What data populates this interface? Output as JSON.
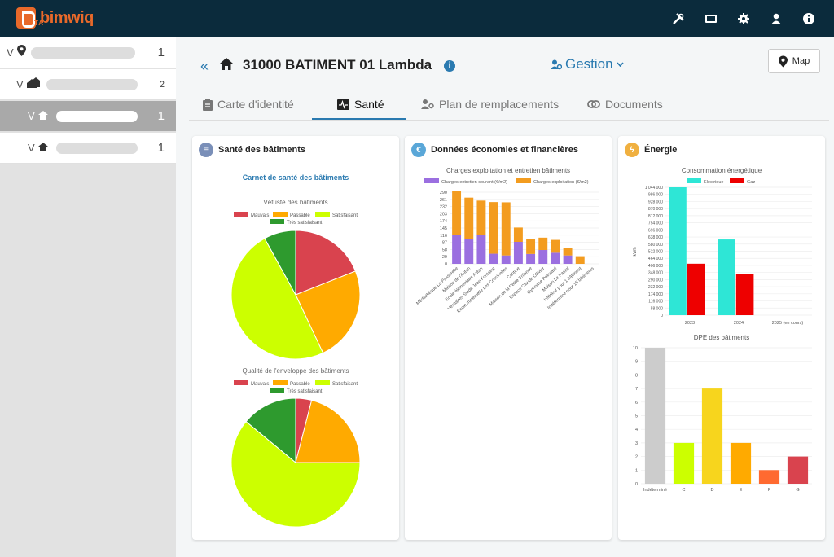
{
  "app": {
    "brand": "bimwiq",
    "brand_sub": "DATA"
  },
  "topbar_icons": [
    "tools-icon",
    "card-icon",
    "gear-icon",
    "user-icon",
    "info-icon"
  ],
  "sidebar": {
    "items": [
      {
        "icon": "pin-icon",
        "count": "1",
        "level": 0
      },
      {
        "icon": "buildings-icon",
        "count": "2",
        "level": 1
      },
      {
        "icon": "home-icon",
        "count": "1",
        "level": 2,
        "selected": true
      },
      {
        "icon": "home-icon",
        "count": "1",
        "level": 2
      }
    ]
  },
  "header": {
    "back": "«",
    "title": "31000 BATIMENT 01 Lambda",
    "info": "i",
    "menu_label": "Gestion",
    "map_label": "Map"
  },
  "tabs": [
    {
      "label": "Carte d'identité",
      "icon": "clipboard-icon"
    },
    {
      "label": "Santé",
      "icon": "heartbeat-icon",
      "active": true
    },
    {
      "label": "Plan de remplacements",
      "icon": "users-gear-icon"
    },
    {
      "label": "Documents",
      "icon": "link-icon"
    }
  ],
  "colors": {
    "mauvais": "#d9434e",
    "passable": "#ffaa00",
    "satisfaisant": "#ccff00",
    "tres_satisfaisant": "#2e9a2e",
    "charges_entretien": "#9b6fe0",
    "charges_exploitation": "#f39c1f",
    "electrique": "#2ee6d6",
    "gaz": "#ee0000",
    "accent": "#2a7ab0"
  },
  "cards": {
    "sante": {
      "title": "Santé des bâtiments",
      "subtitle": "Carnet de santé des bâtiments",
      "legend": [
        "Mauvais",
        "Passable",
        "Satisfaisant",
        "Très satisfaisant"
      ]
    },
    "finance": {
      "title": "Données économies et financières"
    },
    "energie": {
      "title": "Énergie"
    }
  },
  "chart_data": [
    {
      "type": "pie",
      "title": "Vétusté des bâtiments",
      "categories": [
        "Mauvais",
        "Passable",
        "Satisfaisant",
        "Très satisfaisant"
      ],
      "values": [
        19,
        24,
        49,
        8
      ]
    },
    {
      "type": "pie",
      "title": "Qualité de l'enveloppe des bâtiments",
      "categories": [
        "Mauvais",
        "Passable",
        "Satisfaisant",
        "Très satisfaisant"
      ],
      "values": [
        4,
        21,
        61,
        14
      ]
    },
    {
      "type": "bar",
      "stacked": true,
      "title": "Charges exploitation et entretien bâtiments",
      "categories": [
        "Médiathèque La Passerelle",
        "Maison de l'Autan",
        "Ecole élémentaire Autan",
        "Vestiaires Stade Jean Fontaine",
        "Ecole maternelle Les Coccinelles",
        "Cantine",
        "Maison de la Petite Enfance",
        "Espace Claude Ollivier",
        "Gymnase Poincaré",
        "Maison Le Pastel",
        "Inférieur pour 1 bâtiment",
        "Indéterminé pour 15 bâtiments"
      ],
      "series": [
        {
          "name": "Charges entretien courant (€/m2)",
          "values": [
            116,
            101,
            116,
            41,
            34,
            89,
            40,
            56,
            45,
            34,
            0,
            0
          ]
        },
        {
          "name": "Charges exploitation (€/m2)",
          "values": [
            180,
            167,
            140,
            209,
            215,
            58,
            59,
            50,
            52,
            30,
            31,
            0
          ]
        }
      ],
      "yticks": [
        "0",
        "29",
        "58",
        "87",
        "116",
        "145",
        "174",
        "203",
        "232",
        "261",
        "290"
      ],
      "ylim": [
        0,
        290
      ]
    },
    {
      "type": "bar",
      "title": "Consommation énergétique",
      "categories": [
        "2023",
        "2024",
        "2025 (en cours)"
      ],
      "series": [
        {
          "name": "Electrique",
          "values": [
            1044000,
            618000,
            0
          ]
        },
        {
          "name": "Gaz",
          "values": [
            420000,
            336000,
            0
          ]
        }
      ],
      "ylabel": "kWh",
      "yticks": [
        "0",
        "58 000",
        "116 000",
        "174 000",
        "232 000",
        "290 000",
        "348 000",
        "406 000",
        "464 000",
        "522 000",
        "580 000",
        "638 000",
        "696 000",
        "754 000",
        "812 000",
        "870 000",
        "928 000",
        "986 000",
        "1 044 000"
      ],
      "ylim": [
        0,
        1044000
      ]
    },
    {
      "type": "bar",
      "title": "DPE des bâtiments",
      "categories": [
        "Indéterminé",
        "C",
        "D",
        "E",
        "F",
        "G"
      ],
      "values": [
        10,
        3,
        7,
        3,
        1,
        2
      ],
      "colors": [
        "#cccccc",
        "#ccff00",
        "#f7d51d",
        "#ffaa00",
        "#ff6a30",
        "#d9434e"
      ],
      "yticks": [
        "0",
        "1",
        "2",
        "3",
        "4",
        "5",
        "6",
        "7",
        "8",
        "9",
        "10"
      ],
      "ylim": [
        0,
        10
      ]
    }
  ]
}
